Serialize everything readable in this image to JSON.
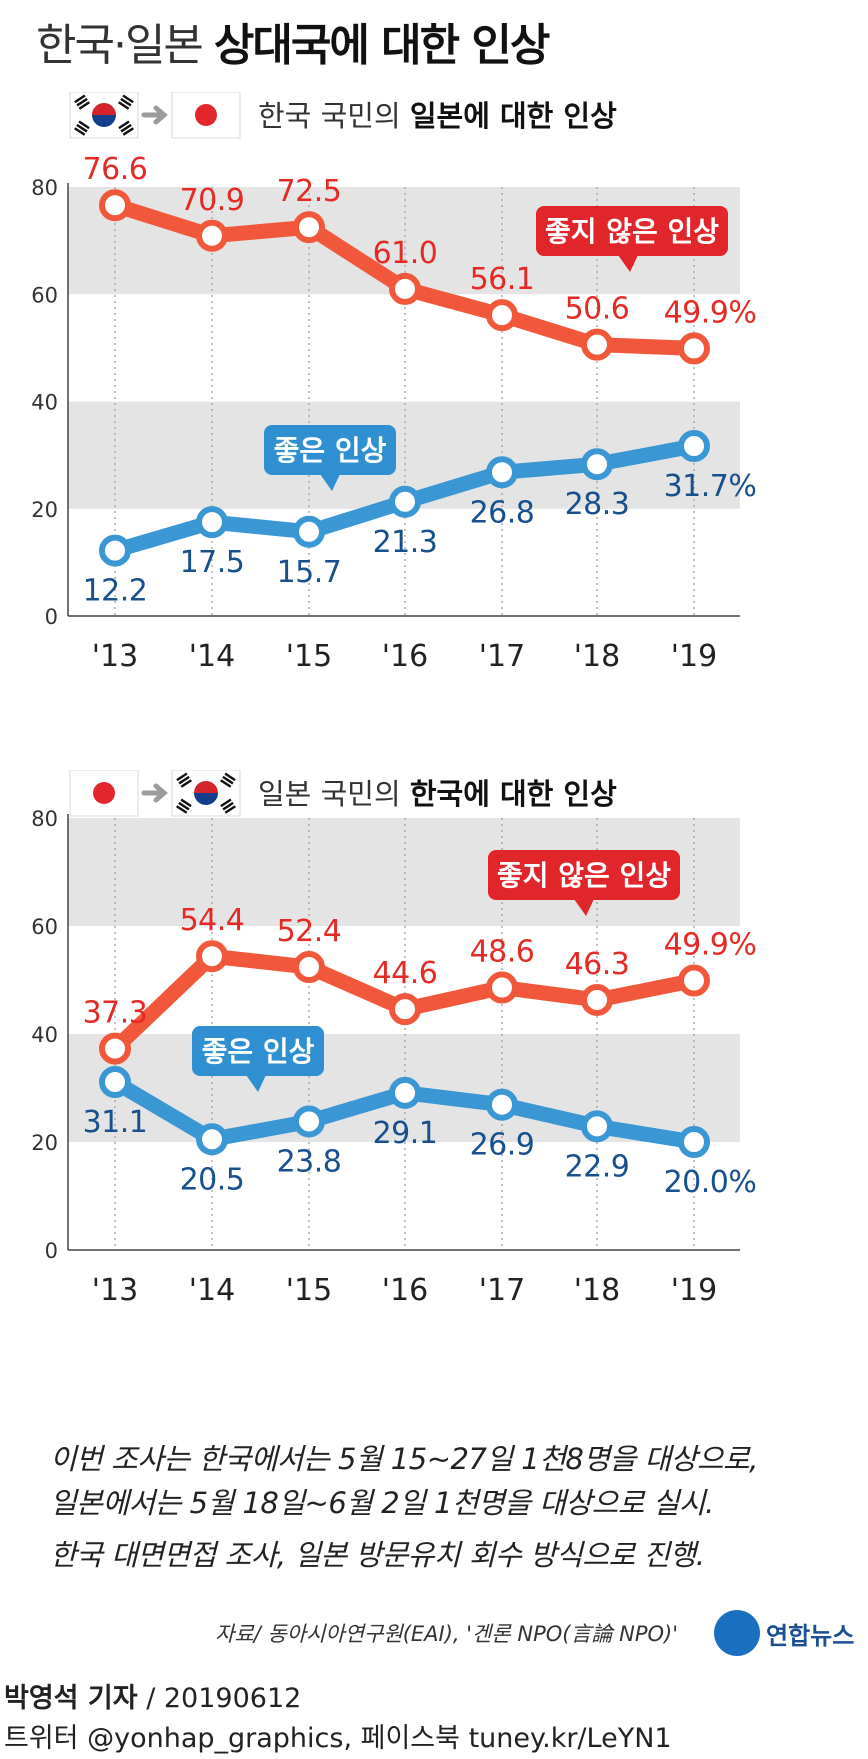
{
  "title": {
    "light": "한국·일본",
    "bold": "상대국에 대한 인상"
  },
  "chart_data": [
    {
      "type": "line",
      "subtitle_light": "한국 국민의",
      "subtitle_bold": "일본에 대한 인상",
      "flag_from": "korea-flag",
      "flag_to": "japan-flag",
      "categories": [
        "'13",
        "'14",
        "'15",
        "'16",
        "'17",
        "'18",
        "'19"
      ],
      "ylim": [
        0,
        80
      ],
      "yticks": [
        "0",
        "20",
        "40",
        "60",
        "80"
      ],
      "series": [
        {
          "name": "좋지 않은 인상",
          "color": "#f1583b",
          "label_color": "#e52a25",
          "values": [
            76.6,
            70.9,
            72.5,
            61.0,
            56.1,
            50.6,
            49.9
          ],
          "labels": [
            "76.6",
            "70.9",
            "72.5",
            "61.0",
            "56.1",
            "50.6",
            "49.9%"
          ]
        },
        {
          "name": "좋은 인상",
          "color": "#3b97d3",
          "label_color": "#17508c",
          "values": [
            12.2,
            17.5,
            15.7,
            21.3,
            26.8,
            28.3,
            31.7
          ],
          "labels": [
            "12.2",
            "17.5",
            "15.7",
            "21.3",
            "26.8",
            "28.3",
            "31.7%"
          ]
        }
      ]
    },
    {
      "type": "line",
      "subtitle_light": "일본 국민의",
      "subtitle_bold": "한국에 대한 인상",
      "flag_from": "japan-flag",
      "flag_to": "korea-flag",
      "categories": [
        "'13",
        "'14",
        "'15",
        "'16",
        "'17",
        "'18",
        "'19"
      ],
      "ylim": [
        0,
        80
      ],
      "yticks": [
        "0",
        "20",
        "40",
        "60",
        "80"
      ],
      "series": [
        {
          "name": "좋지 않은 인상",
          "color": "#f1583b",
          "label_color": "#e52a25",
          "values": [
            37.3,
            54.4,
            52.4,
            44.6,
            48.6,
            46.3,
            49.9
          ],
          "labels": [
            "37.3",
            "54.4",
            "52.4",
            "44.6",
            "48.6",
            "46.3",
            "49.9%"
          ]
        },
        {
          "name": "좋은 인상",
          "color": "#3b97d3",
          "label_color": "#17508c",
          "values": [
            31.1,
            20.5,
            23.8,
            29.1,
            26.9,
            22.9,
            20.0
          ],
          "labels": [
            "31.1",
            "20.5",
            "23.8",
            "29.1",
            "26.9",
            "22.9",
            "20.0%"
          ]
        }
      ]
    }
  ],
  "notes": [
    "이번 조사는 한국에서는 5월 15~27일 1천8명을 대상으로,",
    "일본에서는 5월 18일~6월 2일 1천명을 대상으로 실시.",
    "한국 대면면접 조사, 일본 방문유치 회수 방식으로 진행."
  ],
  "source": "자료/ 동아시아연구원(EAI), '겐론 NPO(言論 NPO)'",
  "logo_text": "연합뉴스",
  "byline": {
    "reporter": "박영석 기자",
    "date": "/ 20190612"
  },
  "social": "트위터 @yonhap_graphics, 페이스북 tuney.kr/LeYN1"
}
